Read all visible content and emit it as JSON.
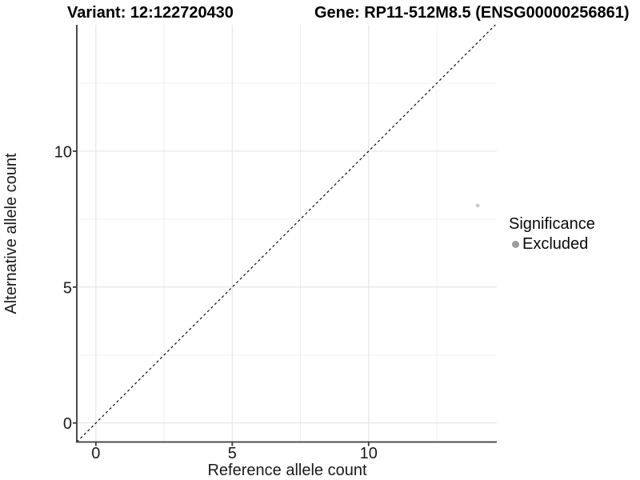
{
  "header": {
    "variant_title": "Variant: 12:122720430",
    "gene_title": "Gene: RP11-512M8.5 (ENSG00000256861)"
  },
  "legend": {
    "title": "Significance",
    "items": [
      {
        "label": "Excluded",
        "color": "#9c9c9c"
      }
    ]
  },
  "chart_data": {
    "type": "scatter",
    "title": "Variant: 12:122720430 | Gene: RP11-512M8.5 (ENSG00000256861)",
    "xlabel": "Reference allele count",
    "ylabel": "Alternative allele count",
    "xlim": [
      -0.7,
      14.7
    ],
    "ylim": [
      -0.7,
      14.65
    ],
    "x_ticks": [
      0,
      5,
      10
    ],
    "y_ticks": [
      0,
      5,
      10
    ],
    "x_minor_gridlines": [
      2.5,
      7.5,
      12.5
    ],
    "y_minor_gridlines": [
      2.5,
      7.5,
      12.5
    ],
    "grid": "on",
    "legend_position": "right",
    "legend_title": "Significance",
    "series": [
      {
        "name": "Excluded",
        "point_color": "#c7c7c7",
        "points": [
          {
            "x": 14,
            "y": 8
          }
        ]
      }
    ],
    "reference_line": {
      "type": "identity y = x",
      "from": -0.7,
      "to": 14.65,
      "style": "dashed",
      "color": "#111111"
    }
  },
  "colors": {
    "background": "#ffffff",
    "axis_line": "#383838",
    "grid_major": "#e4e4e4",
    "grid_minor": "#f0f0f0",
    "tick_text": "#1a1a1a"
  }
}
